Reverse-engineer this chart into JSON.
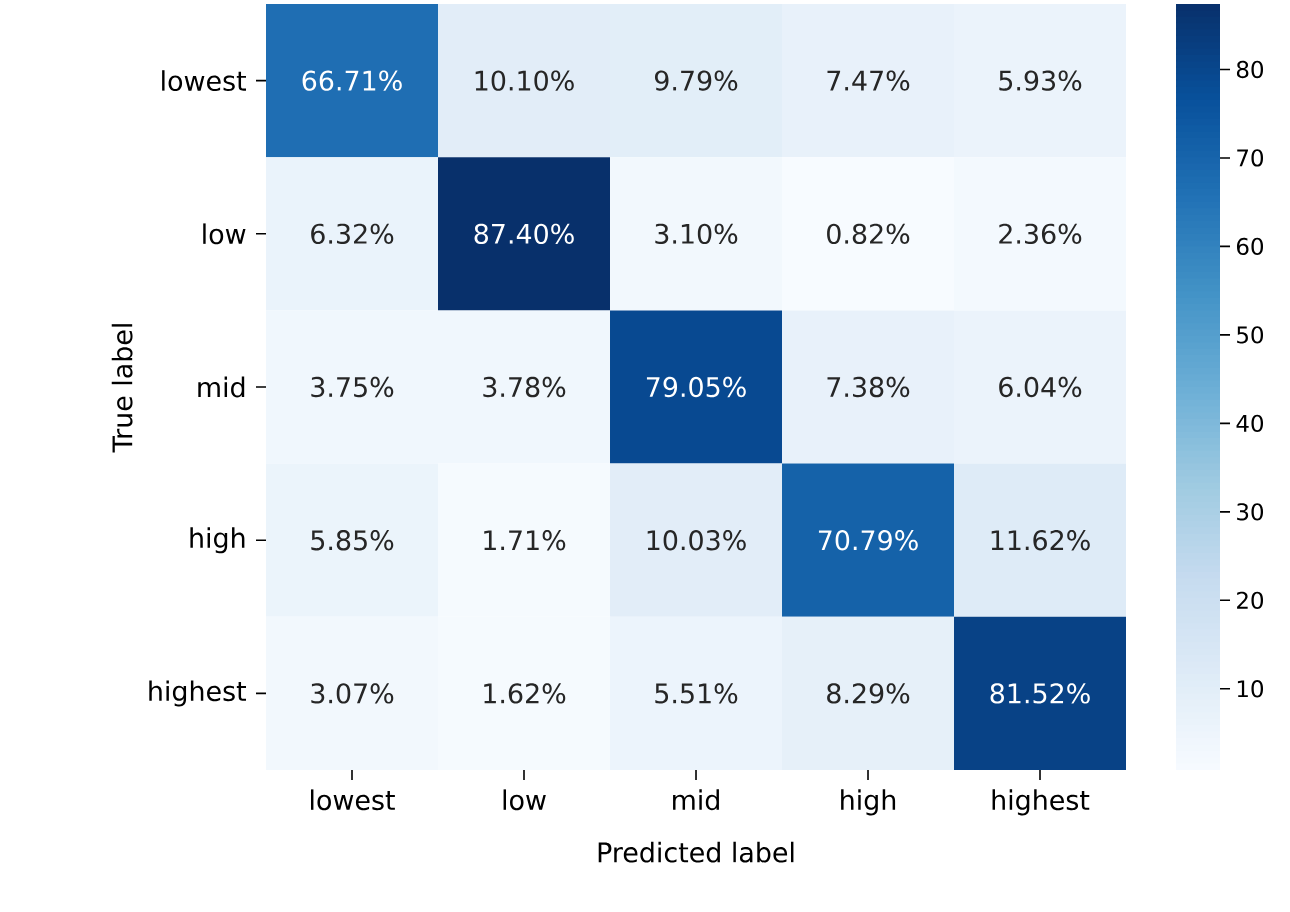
{
  "chart_data": {
    "type": "heatmap",
    "xlabel": "Predicted label",
    "ylabel": "True label",
    "categories": [
      "lowest",
      "low",
      "mid",
      "high",
      "highest"
    ],
    "y_categories": [
      "lowest",
      "low",
      "mid",
      "high",
      "highest"
    ],
    "cells": [
      [
        66.71,
        10.1,
        9.79,
        7.47,
        5.93
      ],
      [
        6.32,
        87.4,
        3.1,
        0.82,
        2.36
      ],
      [
        3.75,
        3.78,
        79.05,
        7.38,
        6.04
      ],
      [
        5.85,
        1.71,
        10.03,
        70.79,
        11.62
      ],
      [
        3.07,
        1.62,
        5.51,
        8.29,
        81.52
      ]
    ],
    "cell_labels": [
      [
        "66.71%",
        "10.10%",
        "9.79%",
        "7.47%",
        "5.93%"
      ],
      [
        "6.32%",
        "87.40%",
        "3.10%",
        "0.82%",
        "2.36%"
      ],
      [
        "3.75%",
        "3.78%",
        "79.05%",
        "7.38%",
        "6.04%"
      ],
      [
        "5.85%",
        "1.71%",
        "10.03%",
        "70.79%",
        "11.62%"
      ],
      [
        "3.07%",
        "1.62%",
        "5.51%",
        "8.29%",
        "81.52%"
      ]
    ],
    "clim": [
      0.82,
      87.4
    ],
    "cticks": [
      10,
      20,
      30,
      40,
      50,
      60,
      70,
      80
    ]
  }
}
